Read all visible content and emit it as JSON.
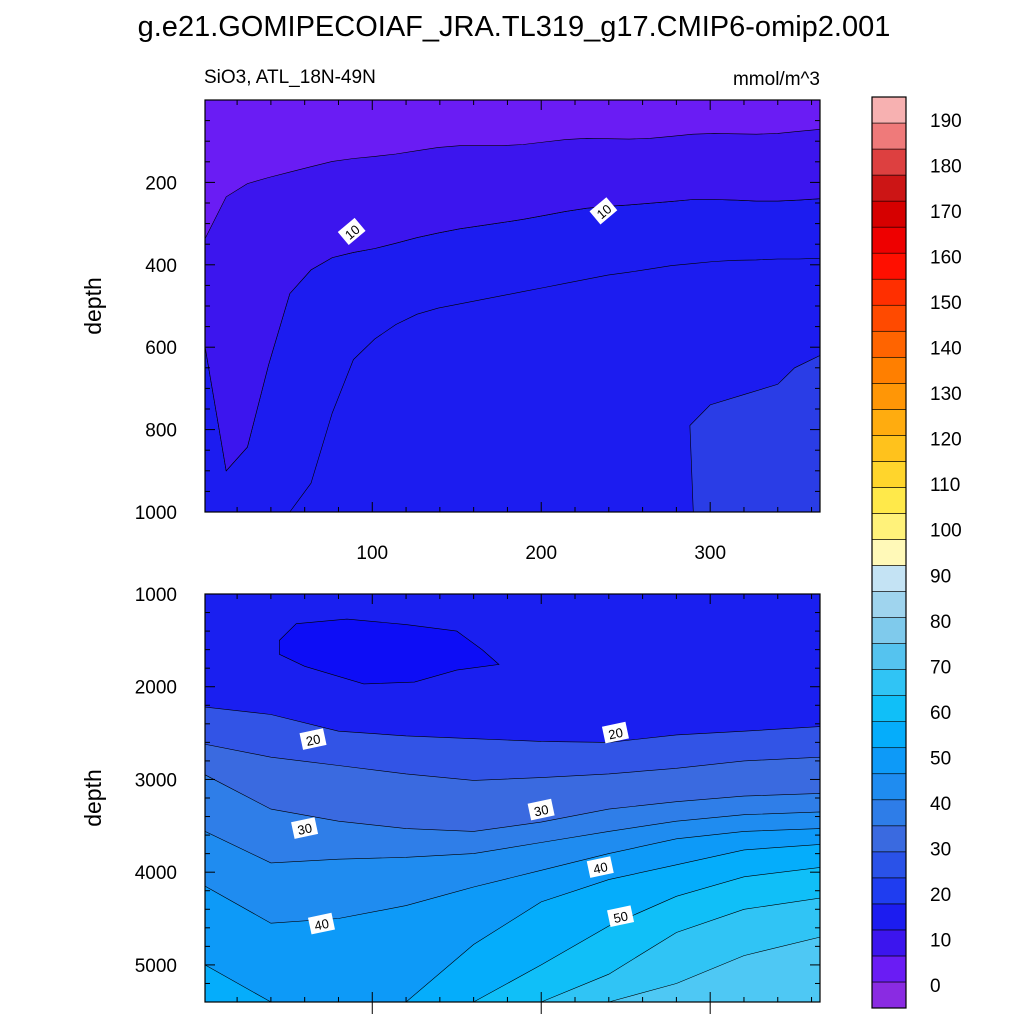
{
  "figure": {
    "title": "g.e21.GOMIPECOIAF_JRA.TL319_g17.CMIP6-omip2.001",
    "variable_label": "SiO3, ATL_18N-49N",
    "units_label": "mmol/m^3"
  },
  "chart_data": [
    {
      "type": "heatmap",
      "panel": "upper",
      "title": "SiO3, ATL_18N-49N",
      "units": "mmol/m^3",
      "xlabel": "",
      "ylabel": "depth",
      "xlim": [
        1,
        365
      ],
      "ylim": [
        1000,
        0
      ],
      "y_inverted": true,
      "xticks": [
        100,
        200,
        300
      ],
      "yticks": [
        200,
        400,
        600,
        800,
        1000
      ],
      "contour_interval": 5,
      "contour_labels": [
        {
          "text": "10",
          "x": 88,
          "y": 320
        },
        {
          "text": "10",
          "x": 237,
          "y": 270
        }
      ],
      "regions": [
        {
          "range": "0-5",
          "color": "#6a1cf4",
          "boundary_depth": [
            340,
            235,
            200,
            185,
            175,
            165,
            152,
            142,
            134,
            128,
            123,
            118,
            114,
            111,
            108,
            105,
            102,
            99,
            96,
            94,
            92,
            90,
            88,
            86,
            84,
            82,
            80,
            78,
            76,
            74
          ]
        },
        {
          "range": "5-10",
          "color": "#3c15ee",
          "boundary_depth": [
            600,
            900,
            840,
            640,
            470,
            415,
            385,
            370,
            358,
            345,
            334,
            325,
            315,
            305,
            295,
            287,
            280,
            273,
            265,
            258,
            252,
            248,
            246,
            244,
            244,
            243,
            243,
            243,
            243,
            242
          ]
        },
        {
          "range": "10-15",
          "color": "#1c1cf0",
          "boundary_depth": [
            1000,
            1000,
            1000,
            1000,
            1000,
            930,
            760,
            630,
            580,
            545,
            520,
            505,
            495,
            485,
            475,
            465,
            455,
            445,
            435,
            425,
            418,
            410,
            402,
            397,
            392,
            389,
            388,
            386,
            386,
            384
          ]
        },
        {
          "range": "15-20",
          "color": "#2a3de6",
          "note": "deep region near x=290-365 below ~620-790 m"
        }
      ]
    },
    {
      "type": "heatmap",
      "panel": "lower",
      "xlabel": "",
      "ylabel": "depth",
      "xlim": [
        1,
        365
      ],
      "ylim": [
        5400,
        1000
      ],
      "y_inverted": true,
      "xticks": [
        100,
        200,
        300
      ],
      "yticks": [
        1000,
        2000,
        3000,
        4000,
        5000
      ],
      "contour_interval": 5,
      "contour_labels": [
        {
          "text": "20",
          "x": 65,
          "y": 2570
        },
        {
          "text": "20",
          "x": 244,
          "y": 2500
        },
        {
          "text": "30",
          "x": 60,
          "y": 3530
        },
        {
          "text": "30",
          "x": 200,
          "y": 3330
        },
        {
          "text": "40",
          "x": 235,
          "y": 3950
        },
        {
          "text": "40",
          "x": 70,
          "y": 4560
        },
        {
          "text": "50",
          "x": 247,
          "y": 4480
        }
      ],
      "regions": [
        {
          "range": "20-25",
          "color": "#1a1ff0",
          "note": "upper layer 1000-~2300 m"
        },
        {
          "range": "15-20",
          "color": "#0d0df6",
          "note": "closed minimum near x=45-175, ~1300-2000 m"
        },
        {
          "range": "25-30",
          "color": "#3254e6"
        },
        {
          "range": "30-35",
          "color": "#3a6ae0"
        },
        {
          "range": "35-40",
          "color": "#2f7ee8"
        },
        {
          "range": "40-45",
          "color": "#1f8cf0"
        },
        {
          "range": "45-50",
          "color": "#0d9af8"
        },
        {
          "range": "50-55",
          "color": "#05adfb"
        },
        {
          "range": "55-60",
          "color": "#10bff8"
        },
        {
          "range": "60-65",
          "color": "#30c4f5"
        }
      ]
    },
    {
      "type": "colorbar",
      "min": -5,
      "max": 195,
      "step": 5,
      "tick_labels": [
        "0",
        "10",
        "20",
        "30",
        "40",
        "50",
        "60",
        "70",
        "80",
        "90",
        "100",
        "110",
        "120",
        "130",
        "140",
        "150",
        "160",
        "170",
        "180",
        "190"
      ],
      "colors": [
        "#8a2be2",
        "#6a1cf4",
        "#3c15ee",
        "#1c1cf0",
        "#1f3df0",
        "#2a52e8",
        "#3a6ae0",
        "#2e7de8",
        "#1f8cf0",
        "#0d9af8",
        "#05adfb",
        "#10bff8",
        "#30c4f5",
        "#55c3ef",
        "#7fcaec",
        "#9fd4ee",
        "#c4e3f4",
        "#fff9b8",
        "#fff27a",
        "#ffe94a",
        "#ffd52c",
        "#ffc21c",
        "#ffac0f",
        "#ff9606",
        "#ff7f00",
        "#ff6400",
        "#ff4a00",
        "#ff2f00",
        "#ff0f00",
        "#ee0000",
        "#d60000",
        "#cc1515",
        "#dd4040",
        "#ef7a7a",
        "#f7b1b1"
      ]
    }
  ]
}
